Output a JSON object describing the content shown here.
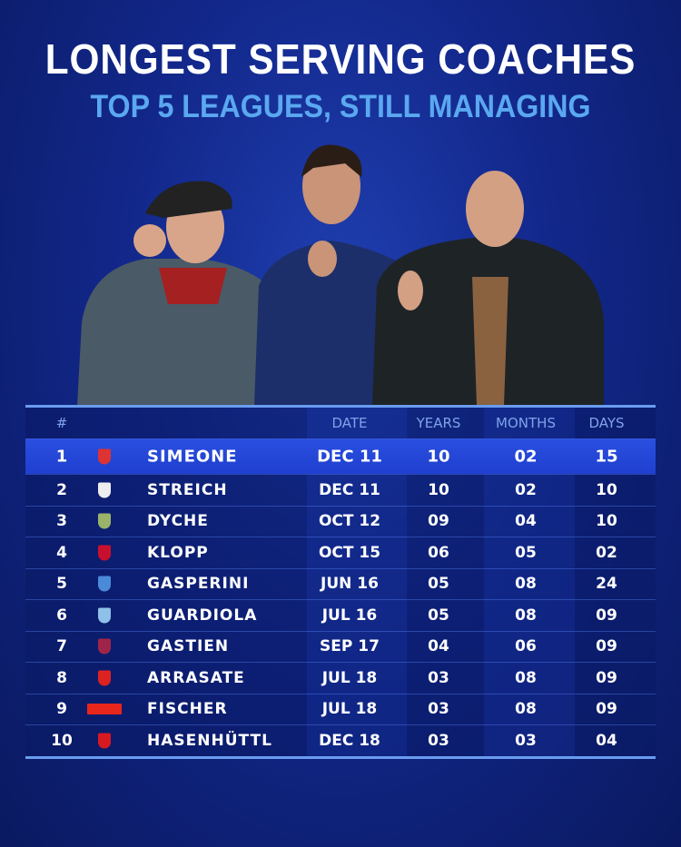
{
  "title": "LONGEST SERVING COACHES",
  "subtitle": "TOP 5 LEAGUES, STILL MANAGING",
  "table": {
    "headers": {
      "rank": "#",
      "date": "DATE",
      "years": "YEARS",
      "months": "MONTHS",
      "days": "DAYS"
    },
    "rows": [
      {
        "rank": "1",
        "name": "SIMEONE",
        "date": "DEC 11",
        "years": "10",
        "months": "02",
        "days": "15",
        "crest": "atletico-madrid-crest",
        "color": "#d33"
      },
      {
        "rank": "2",
        "name": "STREICH",
        "date": "DEC 11",
        "years": "10",
        "months": "02",
        "days": "10",
        "crest": "freiburg-crest",
        "color": "#eee"
      },
      {
        "rank": "3",
        "name": "DYCHE",
        "date": "OCT 12",
        "years": "09",
        "months": "04",
        "days": "10",
        "crest": "burnley-crest",
        "color": "#9ab36a"
      },
      {
        "rank": "4",
        "name": "KLOPP",
        "date": "OCT 15",
        "years": "06",
        "months": "05",
        "days": "02",
        "crest": "liverpool-crest",
        "color": "#c8102e"
      },
      {
        "rank": "5",
        "name": "GASPERINI",
        "date": "JUN 16",
        "years": "05",
        "months": "08",
        "days": "24",
        "crest": "atalanta-crest",
        "color": "#4a8ad8"
      },
      {
        "rank": "6",
        "name": "GUARDIOLA",
        "date": "JUL 16",
        "years": "05",
        "months": "08",
        "days": "09",
        "crest": "man-city-crest",
        "color": "#8fc0e8"
      },
      {
        "rank": "7",
        "name": "GASTIEN",
        "date": "SEP 17",
        "years": "04",
        "months": "06",
        "days": "09",
        "crest": "clermont-crest",
        "color": "#a0244a"
      },
      {
        "rank": "8",
        "name": "ARRASATE",
        "date": "JUL 18",
        "years": "03",
        "months": "08",
        "days": "09",
        "crest": "osasuna-crest",
        "color": "#d22"
      },
      {
        "rank": "9",
        "name": "FISCHER",
        "date": "JUL 18",
        "years": "03",
        "months": "08",
        "days": "09",
        "crest": "union-berlin-crest",
        "color": "#e8261c"
      },
      {
        "rank": "10",
        "name": "HASENHÜTTL",
        "date": "DEC 18",
        "years": "03",
        "months": "03",
        "days": "04",
        "crest": "southampton-crest",
        "color": "#d71920"
      }
    ]
  }
}
